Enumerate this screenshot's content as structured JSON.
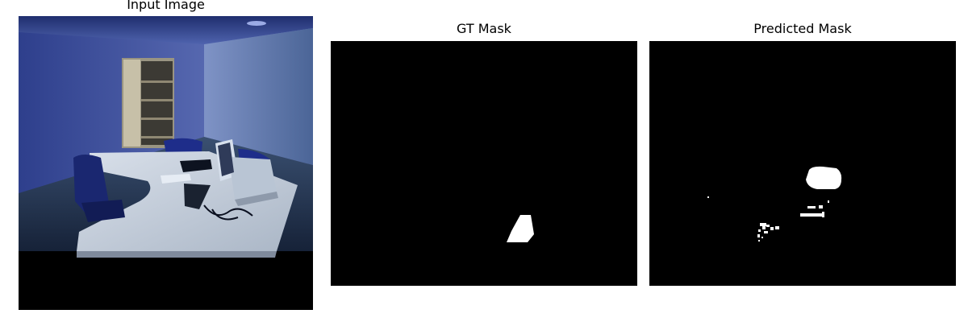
{
  "panels": {
    "input": {
      "title": "Input Image"
    },
    "gt": {
      "title": "GT Mask"
    },
    "pred": {
      "title": "Predicted Mask"
    }
  },
  "colors": {
    "mask_background": "#000000",
    "mask_foreground": "#ffffff",
    "room_wall": "#3b4f86",
    "room_floor": "#26385a",
    "desk": "#c9d1dd"
  }
}
